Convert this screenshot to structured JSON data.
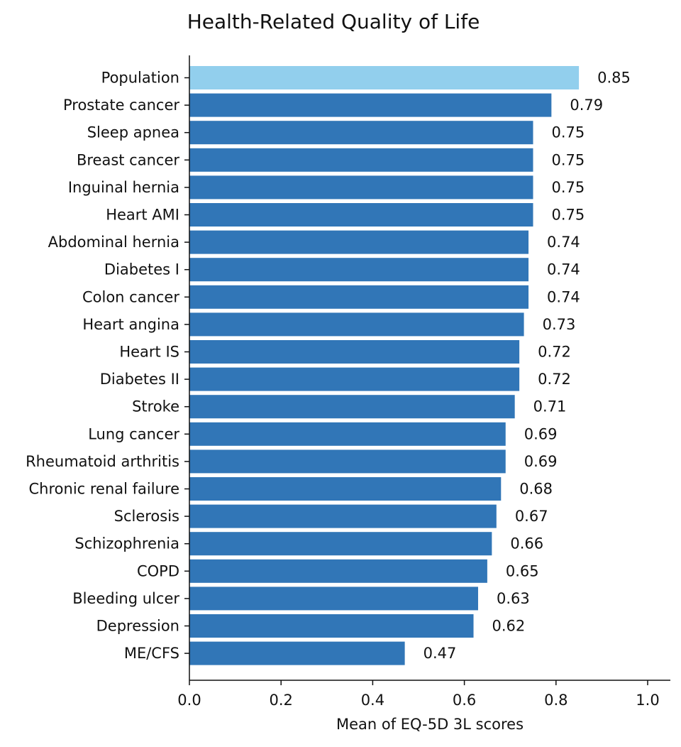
{
  "chart_data": {
    "type": "bar",
    "orientation": "horizontal",
    "title": "Health-Related Quality of Life",
    "xlabel": "Mean of EQ-5D 3L scores",
    "ylabel": "",
    "xlim": [
      0,
      1.05
    ],
    "xticks": [
      "0.0",
      "0.2",
      "0.4",
      "0.6",
      "0.8",
      "1.0"
    ],
    "grid": false,
    "colors": {
      "highlight": "#92cfed",
      "default": "#3176b7"
    },
    "categories": [
      "Population",
      "Prostate cancer",
      "Sleep apnea",
      "Breast cancer",
      "Inguinal hernia",
      "Heart AMI",
      "Abdominal hernia",
      "Diabetes I",
      "Colon cancer",
      "Heart angina",
      "Heart IS",
      "Diabetes II",
      "Stroke",
      "Lung cancer",
      "Rheumatoid arthritis",
      "Chronic renal failure",
      "Sclerosis",
      "Schizophrenia",
      "COPD",
      "Bleeding ulcer",
      "Depression",
      "ME/CFS"
    ],
    "values": [
      0.85,
      0.79,
      0.75,
      0.75,
      0.75,
      0.75,
      0.74,
      0.74,
      0.74,
      0.73,
      0.72,
      0.72,
      0.71,
      0.69,
      0.69,
      0.68,
      0.67,
      0.66,
      0.65,
      0.63,
      0.62,
      0.47
    ],
    "highlighted": [
      "Population"
    ]
  }
}
